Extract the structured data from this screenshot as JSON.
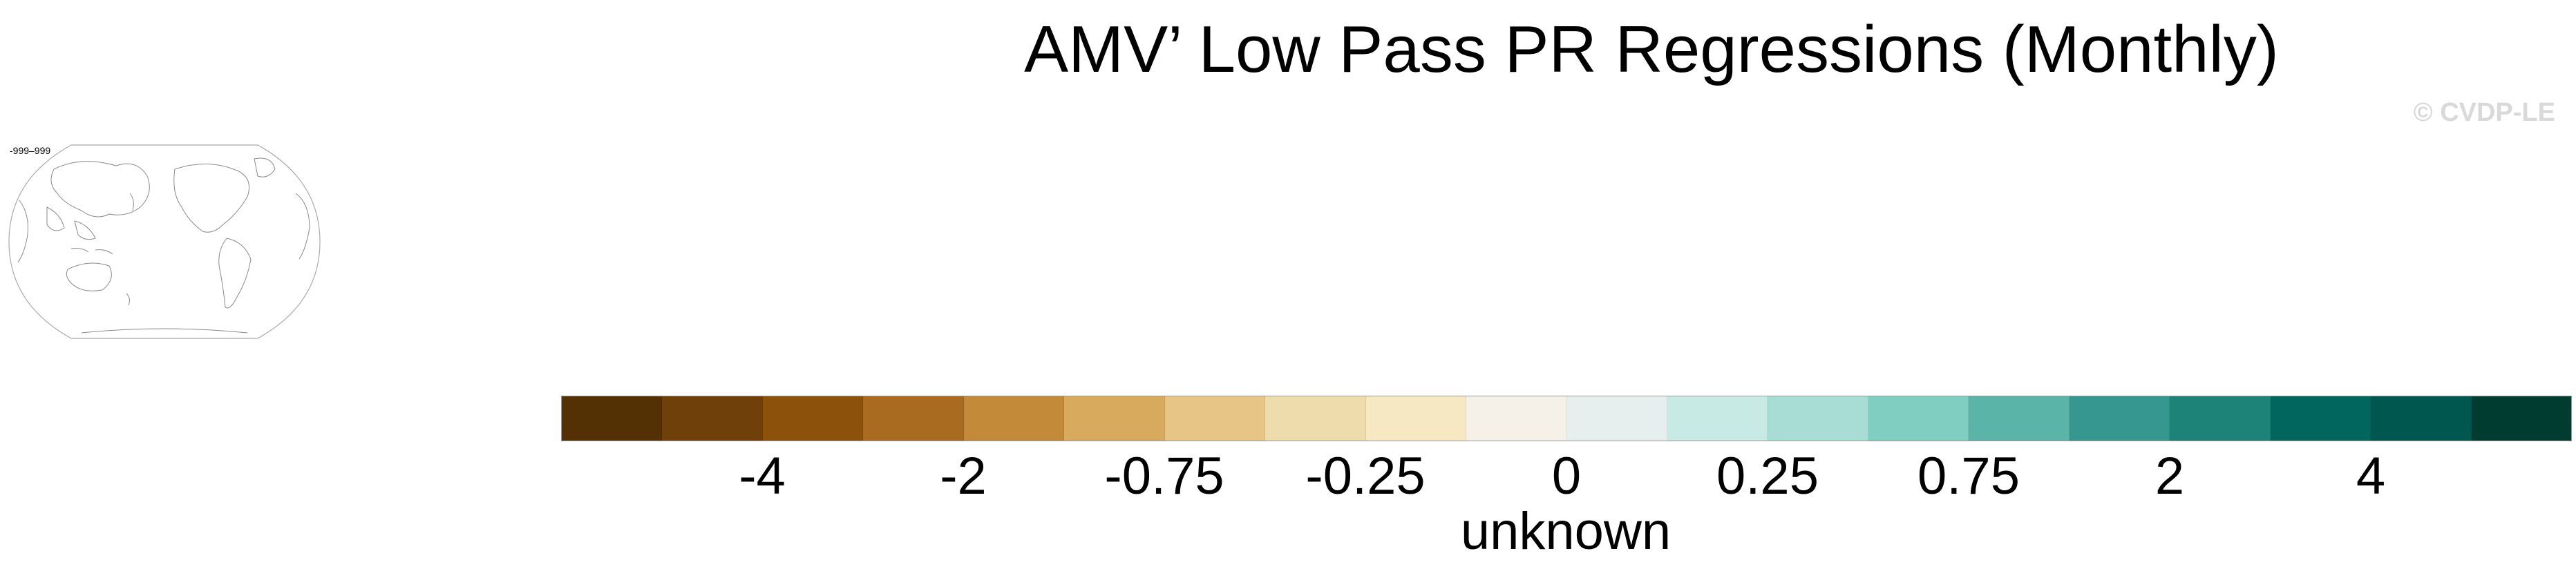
{
  "title": "AMV’ Low Pass PR Regressions (Monthly)",
  "credit": "© CVDP-LE",
  "map_panel": {
    "label": "-999–999"
  },
  "colorbar": {
    "units_label": "unknown",
    "colors": [
      "#543005",
      "#70400a",
      "#8c510a",
      "#a96b20",
      "#c38a3a",
      "#d8aa5e",
      "#e6c587",
      "#efdcac",
      "#f6e8c3",
      "#f5f1e8",
      "#e6efee",
      "#c7eae5",
      "#a7ddd5",
      "#80cdc1",
      "#5ab4a8",
      "#35978f",
      "#1d8379",
      "#01665e",
      "#00574f",
      "#003c30"
    ],
    "tick_labels": [
      "-4",
      "-2",
      "-0.75",
      "-0.25",
      "0",
      "0.25",
      "0.75",
      "2",
      "4"
    ],
    "tick_boundaries": [
      2,
      4,
      6,
      8,
      10,
      12,
      14,
      16,
      18
    ]
  }
}
